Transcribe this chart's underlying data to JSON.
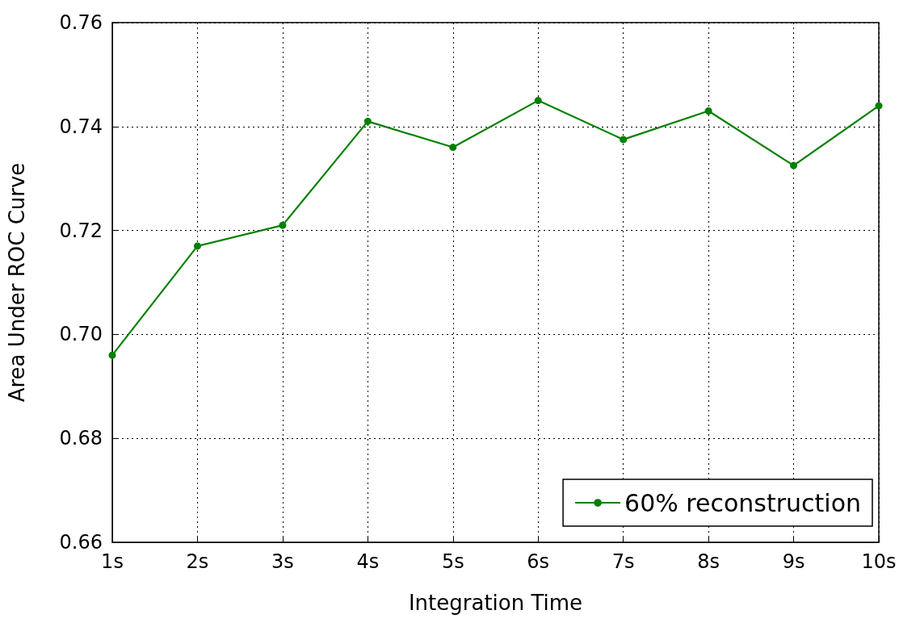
{
  "chart_data": {
    "type": "line",
    "xlabel": "Integration Time",
    "ylabel": "Area Under ROC Curve",
    "categories": [
      "1s",
      "2s",
      "3s",
      "4s",
      "5s",
      "6s",
      "7s",
      "8s",
      "9s",
      "10s"
    ],
    "series": [
      {
        "name": "60% reconstruction",
        "color": "#008000",
        "values": [
          0.696,
          0.717,
          0.721,
          0.741,
          0.736,
          0.745,
          0.7375,
          0.743,
          0.7325,
          0.744
        ]
      }
    ],
    "ylim": [
      0.66,
      0.76
    ],
    "yticks": [
      {
        "value": 0.66,
        "label": "0.66"
      },
      {
        "value": 0.68,
        "label": "0.68"
      },
      {
        "value": 0.7,
        "label": "0.70"
      },
      {
        "value": 0.72,
        "label": "0.72"
      },
      {
        "value": 0.74,
        "label": "0.74"
      },
      {
        "value": 0.76,
        "label": "0.76"
      }
    ],
    "grid": true,
    "legend": "bottom right",
    "marker": "circle",
    "line_style": "solid"
  }
}
